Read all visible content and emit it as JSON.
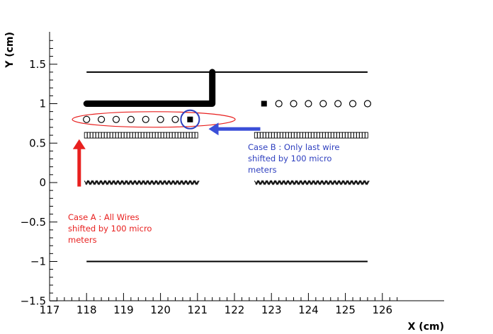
{
  "chart_data": {
    "type": "scatter",
    "title": "",
    "xlabel": "X (cm)",
    "ylabel": "Y (cm)",
    "xlim": [
      117,
      126.7
    ],
    "ylim": [
      -1.5,
      1.88
    ],
    "xticks": [
      "117",
      "118",
      "119",
      "120",
      "121",
      "122",
      "123",
      "124",
      "125",
      "126"
    ],
    "yticks": [
      "−1.5",
      "−1",
      "−0.5",
      "0",
      "0.5",
      "1",
      "1.5"
    ],
    "xtick_values": [
      117,
      118,
      119,
      120,
      121,
      122,
      123,
      124,
      125,
      126
    ],
    "ytick_values": [
      -1.5,
      -1,
      -0.5,
      0,
      0.5,
      1,
      1.5
    ],
    "grid": false,
    "series": [
      {
        "marker": "line",
        "color": "#000000",
        "x": [
          118,
          125.6
        ],
        "y": [
          1.4,
          1.4
        ]
      },
      {
        "marker": "line",
        "color": "#000000",
        "x": [
          118,
          125.6
        ],
        "y": [
          -1.0,
          -1.0
        ]
      },
      {
        "marker": "thick-line",
        "color": "#000000",
        "x": [
          118,
          121.4,
          121.4
        ],
        "y": [
          1.0,
          1.0,
          1.4
        ]
      },
      {
        "marker": "filled-square",
        "color": "#000000",
        "x": [
          120.8,
          122.8
        ],
        "y": [
          0.8,
          1.0
        ]
      },
      {
        "marker": "open-circle",
        "color": "#000000",
        "x": [
          118.0,
          118.4,
          118.8,
          119.2,
          119.6,
          120.0,
          120.4,
          123.2,
          123.6,
          124.0,
          124.4,
          124.8,
          125.2,
          125.6
        ],
        "y": [
          0.8,
          0.8,
          0.8,
          0.8,
          0.8,
          0.8,
          0.8,
          1.0,
          1.0,
          1.0,
          1.0,
          1.0,
          1.0,
          1.0
        ]
      },
      {
        "marker": "open-square-row",
        "color": "#000000",
        "x": [
          118.0,
          121.0
        ],
        "y": [
          0.6,
          0.6
        ]
      },
      {
        "marker": "open-square-row",
        "color": "#000000",
        "x": [
          122.6,
          125.6
        ],
        "y": [
          0.6,
          0.6
        ]
      },
      {
        "marker": "zigzag-row",
        "color": "#000000",
        "x": [
          118.0,
          121.0
        ],
        "y": [
          0.0,
          0.0
        ]
      },
      {
        "marker": "zigzag-row",
        "color": "#000000",
        "x": [
          122.6,
          125.6
        ],
        "y": [
          0.0,
          0.0
        ]
      }
    ],
    "annotations": [
      {
        "text_lines": [
          "Case A : All Wires",
          "shifted by 100 micro",
          "meters"
        ],
        "color": "#e8201f"
      },
      {
        "text_lines": [
          "Case B : Only last wire",
          "shifted by 100 micro",
          "meters"
        ],
        "color": "#2e3fbf"
      }
    ],
    "highlights": [
      {
        "shape": "ellipse",
        "color": "#e8201f",
        "x": 120.5,
        "y": 0.8
      },
      {
        "shape": "circle",
        "color": "#2e3fbf",
        "x": 120.8,
        "y": 0.8
      },
      {
        "shape": "arrow",
        "color": "#e8201f",
        "from": [
          117.8,
          -0.05
        ],
        "to": [
          117.8,
          0.55
        ]
      },
      {
        "shape": "arrow",
        "color": "#3b4fd8",
        "from": [
          122.7,
          0.68
        ],
        "to": [
          121.3,
          0.68
        ]
      }
    ]
  }
}
